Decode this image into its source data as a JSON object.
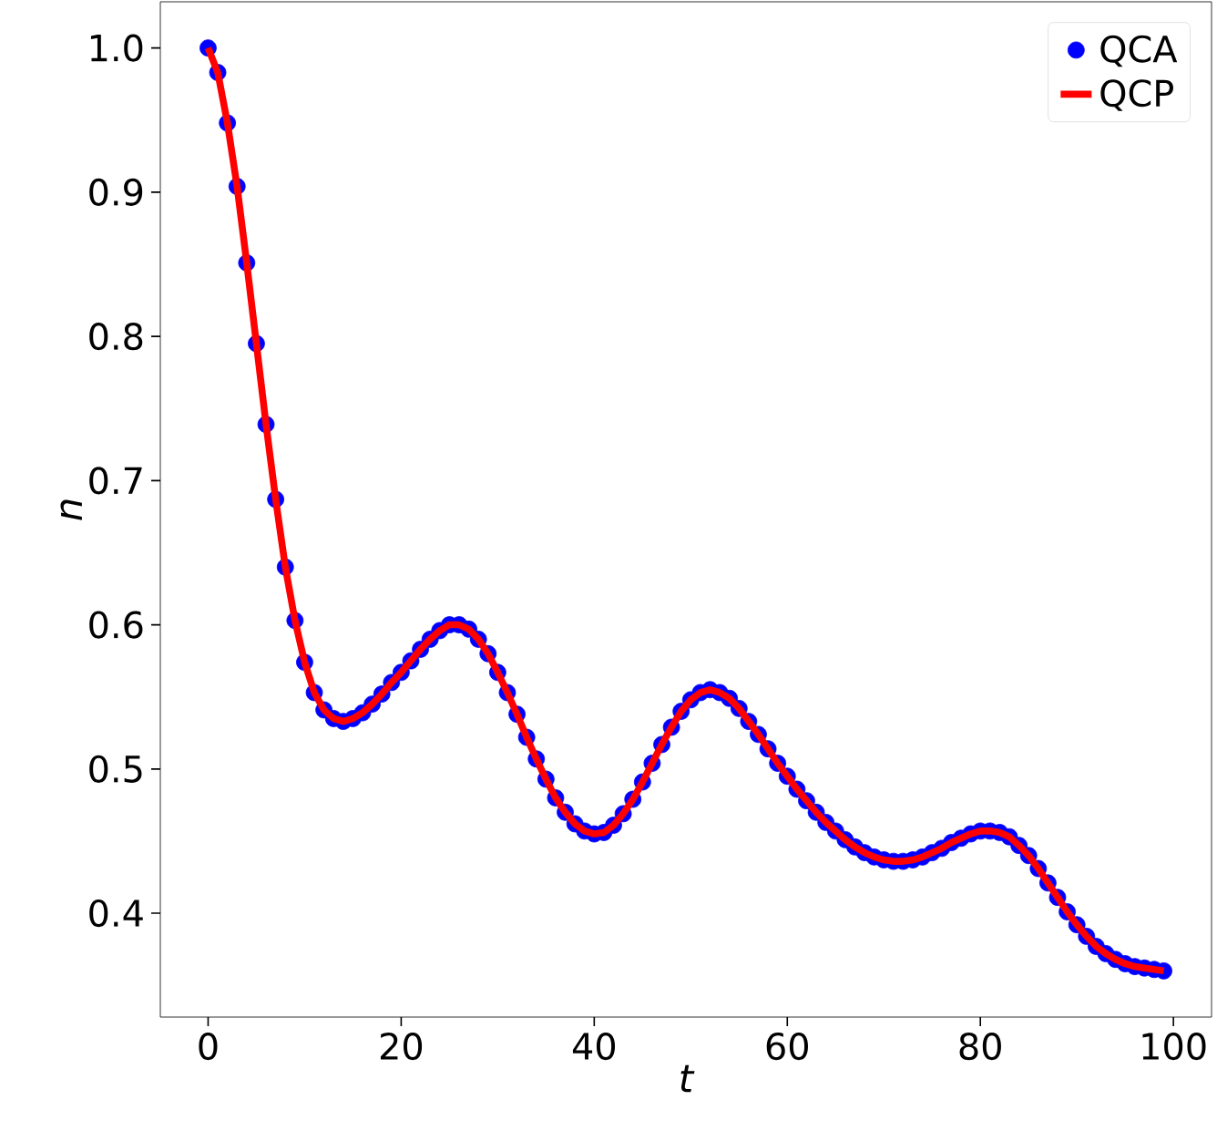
{
  "chart_data": {
    "type": "line",
    "xlabel": "t",
    "ylabel": "n",
    "xlim": [
      -4.95,
      103.95
    ],
    "ylim": [
      0.328,
      1.032
    ],
    "xticks": [
      0,
      20,
      40,
      60,
      80,
      100
    ],
    "yticks": [
      {
        "value": 0.4,
        "label": "0.4"
      },
      {
        "value": 0.5,
        "label": "0.5"
      },
      {
        "value": 0.6,
        "label": "0.6"
      },
      {
        "value": 0.7,
        "label": "0.7"
      },
      {
        "value": 0.8,
        "label": "0.8"
      },
      {
        "value": 0.9,
        "label": "0.9"
      },
      {
        "value": 1.0,
        "label": "1.0"
      }
    ],
    "legend": "top right",
    "x": [
      0,
      1,
      2,
      3,
      4,
      5,
      6,
      7,
      8,
      9,
      10,
      11,
      12,
      13,
      14,
      15,
      16,
      17,
      18,
      19,
      20,
      21,
      22,
      23,
      24,
      25,
      26,
      27,
      28,
      29,
      30,
      31,
      32,
      33,
      34,
      35,
      36,
      37,
      38,
      39,
      40,
      41,
      42,
      43,
      44,
      45,
      46,
      47,
      48,
      49,
      50,
      51,
      52,
      53,
      54,
      55,
      56,
      57,
      58,
      59,
      60,
      61,
      62,
      63,
      64,
      65,
      66,
      67,
      68,
      69,
      70,
      71,
      72,
      73,
      74,
      75,
      76,
      77,
      78,
      79,
      80,
      81,
      82,
      83,
      84,
      85,
      86,
      87,
      88,
      89,
      90,
      91,
      92,
      93,
      94,
      95,
      96,
      97,
      98,
      99
    ],
    "series": [
      {
        "name": "QCA",
        "type": "scatter",
        "marker": "circle",
        "color": "#0000ff",
        "values": [
          1.0,
          0.983,
          0.948,
          0.904,
          0.851,
          0.795,
          0.739,
          0.687,
          0.64,
          0.603,
          0.574,
          0.553,
          0.541,
          0.535,
          0.533,
          0.535,
          0.539,
          0.545,
          0.552,
          0.56,
          0.567,
          0.575,
          0.583,
          0.59,
          0.596,
          0.6,
          0.6,
          0.597,
          0.59,
          0.58,
          0.567,
          0.553,
          0.538,
          0.522,
          0.507,
          0.493,
          0.48,
          0.47,
          0.462,
          0.457,
          0.455,
          0.456,
          0.461,
          0.469,
          0.479,
          0.491,
          0.504,
          0.517,
          0.529,
          0.54,
          0.548,
          0.553,
          0.555,
          0.553,
          0.549,
          0.542,
          0.533,
          0.524,
          0.514,
          0.504,
          0.495,
          0.486,
          0.478,
          0.47,
          0.463,
          0.457,
          0.451,
          0.446,
          0.442,
          0.439,
          0.437,
          0.436,
          0.436,
          0.437,
          0.439,
          0.442,
          0.445,
          0.449,
          0.452,
          0.455,
          0.457,
          0.457,
          0.456,
          0.453,
          0.447,
          0.44,
          0.431,
          0.421,
          0.411,
          0.401,
          0.392,
          0.384,
          0.377,
          0.372,
          0.368,
          0.365,
          0.363,
          0.362,
          0.361,
          0.36
        ]
      },
      {
        "name": "QCP",
        "type": "line",
        "marker": "none",
        "color": "#ff0000",
        "values": [
          1.0,
          0.983,
          0.948,
          0.904,
          0.851,
          0.795,
          0.739,
          0.687,
          0.64,
          0.603,
          0.574,
          0.553,
          0.541,
          0.535,
          0.533,
          0.535,
          0.539,
          0.545,
          0.552,
          0.56,
          0.567,
          0.575,
          0.583,
          0.59,
          0.596,
          0.6,
          0.6,
          0.597,
          0.59,
          0.58,
          0.567,
          0.553,
          0.538,
          0.522,
          0.507,
          0.493,
          0.48,
          0.47,
          0.462,
          0.457,
          0.455,
          0.456,
          0.461,
          0.469,
          0.479,
          0.491,
          0.504,
          0.517,
          0.529,
          0.54,
          0.548,
          0.553,
          0.555,
          0.553,
          0.549,
          0.542,
          0.533,
          0.524,
          0.514,
          0.504,
          0.495,
          0.486,
          0.478,
          0.47,
          0.463,
          0.457,
          0.451,
          0.446,
          0.442,
          0.439,
          0.437,
          0.436,
          0.436,
          0.437,
          0.439,
          0.442,
          0.445,
          0.449,
          0.452,
          0.455,
          0.457,
          0.457,
          0.456,
          0.453,
          0.447,
          0.44,
          0.431,
          0.421,
          0.411,
          0.401,
          0.392,
          0.384,
          0.377,
          0.372,
          0.368,
          0.365,
          0.363,
          0.362,
          0.361,
          0.36
        ]
      }
    ]
  }
}
